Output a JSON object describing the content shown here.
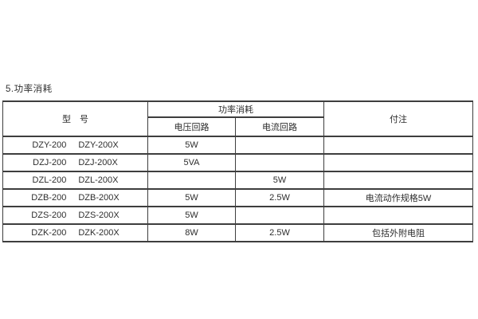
{
  "page": {
    "title": "5.功率消耗"
  },
  "table": {
    "headers": {
      "model": "型　号",
      "power_group": "功率消耗",
      "voltage_circuit": "电压回路",
      "current_circuit": "电流回路",
      "notes": "付注"
    },
    "rows": [
      {
        "model_a": "DZY-200",
        "model_b": "DZY-200X",
        "voltage": "5W",
        "current": "",
        "note": ""
      },
      {
        "model_a": "DZJ-200",
        "model_b": "DZJ-200X",
        "voltage": "5VA",
        "current": "",
        "note": ""
      },
      {
        "model_a": "DZL-200",
        "model_b": "DZL-200X",
        "voltage": "",
        "current": "5W",
        "note": ""
      },
      {
        "model_a": "DZB-200",
        "model_b": "DZB-200X",
        "voltage": "5W",
        "current": "2.5W",
        "note": "电流动作规格5W"
      },
      {
        "model_a": "DZS-200",
        "model_b": "DZS-200X",
        "voltage": "5W",
        "current": "",
        "note": ""
      },
      {
        "model_a": "DZK-200",
        "model_b": "DZK-200X",
        "voltage": "8W",
        "current": "2.5W",
        "note": "包括外附电阻"
      }
    ],
    "colors": {
      "border": "#3e3e3e",
      "text": "#2d2d2d",
      "background": "#ffffff"
    }
  }
}
